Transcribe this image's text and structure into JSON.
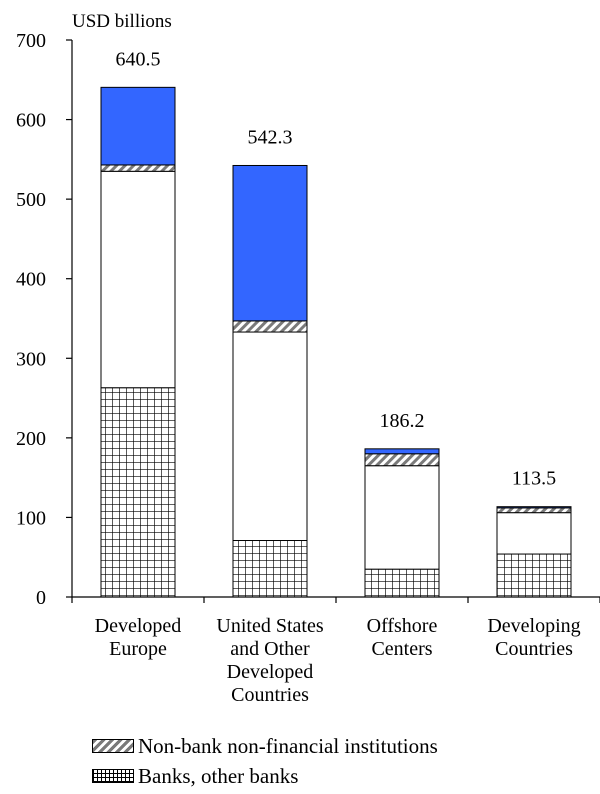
{
  "chart_data": {
    "type": "bar",
    "stacked": true,
    "unit_label": "USD billions",
    "ylim": [
      0,
      700
    ],
    "yticks": [
      0,
      100,
      200,
      300,
      400,
      500,
      600,
      700
    ],
    "categories": [
      [
        "Developed",
        "Europe"
      ],
      [
        "United States",
        "and Other",
        "Developed",
        "Countries"
      ],
      [
        "Offshore",
        "Centers"
      ],
      [
        "Developing",
        "Countries"
      ]
    ],
    "totals": [
      "640.5",
      "542.3",
      "186.2",
      "113.5"
    ],
    "series": [
      {
        "name": "Banks, other banks",
        "pattern": "grid",
        "values": [
          263,
          71,
          35,
          54
        ],
        "in_legend": true
      },
      {
        "name": "",
        "pattern": "plain",
        "values": [
          272,
          262,
          130,
          52
        ],
        "in_legend": false
      },
      {
        "name": "Non-bank non-financial institutions",
        "pattern": "hatch",
        "values": [
          8,
          14,
          15,
          6
        ],
        "in_legend": true
      },
      {
        "name": "",
        "pattern": "solid",
        "color": "#3366ff",
        "values": [
          97.5,
          195.3,
          6.2,
          1.5
        ],
        "in_legend": false
      }
    ],
    "legend_order": [
      2,
      0
    ],
    "legend_position": "bottom-left"
  }
}
